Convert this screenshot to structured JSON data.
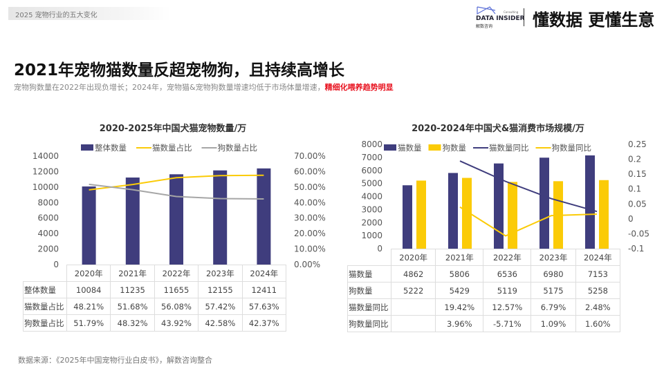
{
  "header": {
    "section": "2025  宠物行业的五大变化",
    "logo_en": "DATA INSIDER",
    "logo_cn": "解数咨询",
    "logo_small": "Consulting",
    "slogan": "懂数据 更懂生意"
  },
  "title": "2021年宠物猫数量反超宠物狗，且持续高增长",
  "subtitle": {
    "normal": "宠物狗数量在2022年出现负增长；2024年，宠物猫&宠物狗数量增速均低于市场体量增速，",
    "highlight": "精细化喂养趋势明显"
  },
  "footer": "数据来源：《2025年中国宠物行业白皮书》，解数咨询整合",
  "colors": {
    "navy": "#3f3d7d",
    "yellow": "#fbcb07",
    "gray": "#a6a6a6",
    "red": "#e8111e"
  },
  "chart_data": [
    {
      "type": "bar+line",
      "title": "2020-2025年中国犬猫宠物数量/万",
      "categories": [
        "2020年",
        "2021年",
        "2022年",
        "2023年",
        "2024年"
      ],
      "ylim": [
        0,
        14000
      ],
      "yticks": [
        "0",
        "2000",
        "4000",
        "6000",
        "8000",
        "10000",
        "12000",
        "14000"
      ],
      "y2lim": [
        0,
        70
      ],
      "y2ticks": [
        "0.00%",
        "10.00%",
        "20.00%",
        "30.00%",
        "40.00%",
        "50.00%",
        "60.00%",
        "70.00%"
      ],
      "legend_position": "top",
      "series": [
        {
          "name": "整体数量",
          "kind": "bar",
          "axis": "left",
          "color": "#3f3d7d",
          "values": [
            10084,
            11235,
            11655,
            12155,
            12411
          ],
          "labels": [
            "10084",
            "11235",
            "11655",
            "12155",
            "12411"
          ]
        },
        {
          "name": "猫数量占比",
          "kind": "line",
          "axis": "right",
          "color": "#fbcb07",
          "values": [
            48.21,
            51.68,
            56.08,
            57.42,
            57.63
          ],
          "labels": [
            "48.21%",
            "51.68%",
            "56.08%",
            "57.42%",
            "57.63%"
          ]
        },
        {
          "name": "狗数量占比",
          "kind": "line",
          "axis": "right",
          "color": "#a6a6a6",
          "values": [
            51.79,
            48.32,
            43.92,
            42.58,
            42.37
          ],
          "labels": [
            "51.79%",
            "48.32%",
            "43.92%",
            "42.58%",
            "42.37%"
          ]
        }
      ]
    },
    {
      "type": "bar+line",
      "title": "2020-2024年中国犬&猫消费市场规模/万",
      "categories": [
        "2020年",
        "2021年",
        "2022年",
        "2023年",
        "2024年"
      ],
      "ylim": [
        0,
        8000
      ],
      "yticks": [
        "0",
        "1000",
        "2000",
        "3000",
        "4000",
        "5000",
        "6000",
        "7000",
        "8000"
      ],
      "y2lim": [
        -0.1,
        0.25
      ],
      "y2ticks": [
        "-0.1",
        "-0.05",
        "0",
        "0.05",
        "0.1",
        "0.15",
        "0.2",
        "0.25"
      ],
      "legend_position": "top",
      "series": [
        {
          "name": "猫数量",
          "kind": "bar",
          "axis": "left",
          "color": "#3f3d7d",
          "values": [
            4862,
            5806,
            6536,
            6980,
            7153
          ],
          "labels": [
            "4862",
            "5806",
            "6536",
            "6980",
            "7153"
          ]
        },
        {
          "name": "狗数量",
          "kind": "bar",
          "axis": "left",
          "color": "#fbcb07",
          "values": [
            5222,
            5429,
            5119,
            5175,
            5258
          ],
          "labels": [
            "5222",
            "5429",
            "5119",
            "5175",
            "5258"
          ]
        },
        {
          "name": "猫数量同比",
          "kind": "line",
          "axis": "right",
          "color": "#3f3d7d",
          "values": [
            null,
            0.1942,
            0.1257,
            0.0679,
            0.0248
          ],
          "labels": [
            "",
            "19.42%",
            "12.57%",
            "6.79%",
            "2.48%"
          ]
        },
        {
          "name": "狗数量同比",
          "kind": "line",
          "axis": "right",
          "color": "#fbcb07",
          "values": [
            null,
            0.0396,
            -0.0571,
            0.0109,
            0.016
          ],
          "labels": [
            "",
            "3.96%",
            "-5.71%",
            "1.09%",
            "1.60%"
          ]
        }
      ]
    }
  ]
}
